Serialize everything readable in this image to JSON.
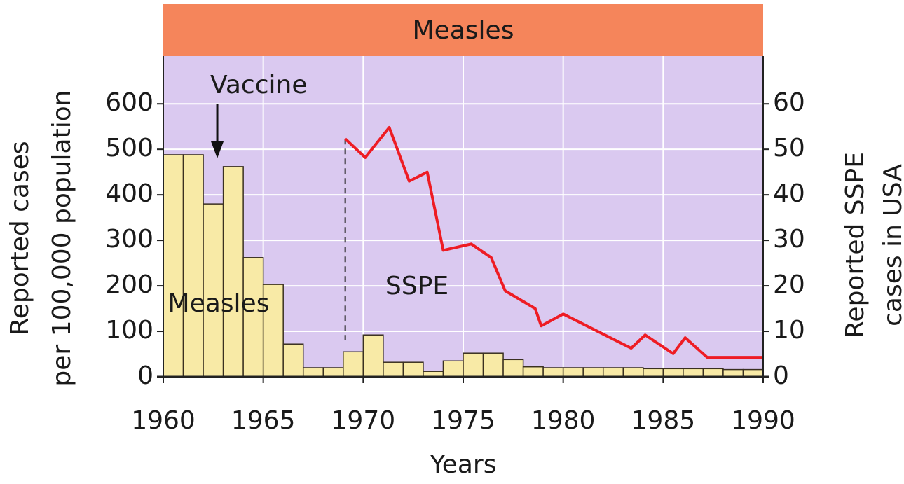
{
  "chart_data": {
    "type": "histogram",
    "band_label": "Measles",
    "xlabel": "Years",
    "ylabel": [
      "Reported cases",
      "per 100,000 population"
    ],
    "y2label": [
      "Reported SSPE",
      "cases in USA"
    ],
    "annotations": [
      {
        "text": "Vaccine",
        "x": 1962.7
      }
    ],
    "xlim": [
      1960,
      1990
    ],
    "ylim": [
      0,
      705
    ],
    "y2lim": [
      0,
      70.5
    ],
    "xticks": [
      1960,
      1965,
      1970,
      1975,
      1980,
      1985,
      1990
    ],
    "yticks": [
      0,
      100,
      200,
      300,
      400,
      500,
      600
    ],
    "y2ticks": [
      0,
      10,
      20,
      30,
      40,
      50,
      60
    ],
    "grid": true,
    "bins": [
      1960,
      1961,
      1962,
      1963,
      1964,
      1965,
      1966,
      1967,
      1968,
      1969,
      1970,
      1971,
      1972,
      1973,
      1974,
      1975,
      1976,
      1977,
      1978,
      1979,
      1980,
      1981,
      1982,
      1983,
      1984,
      1985,
      1986,
      1987,
      1988,
      1989,
      1990
    ],
    "series": [
      {
        "name": "Measles",
        "color": "#f8eaa6",
        "values": [
          488,
          488,
          380,
          462,
          262,
          203,
          72,
          20,
          20,
          55,
          92,
          32,
          32,
          12,
          35,
          52,
          52,
          38,
          22,
          20,
          20,
          20,
          20,
          20,
          18,
          18,
          18,
          18,
          16,
          16
        ]
      },
      {
        "name": "SSPE",
        "type": "line",
        "axis": "y2",
        "color": "#ee1c24",
        "x": [
          1969.1,
          1970.1,
          1971.3,
          1972.3,
          1973.2,
          1974.0,
          1975.4,
          1976.4,
          1977.1,
          1978.6,
          1978.9,
          1980.0,
          1983.4,
          1984.1,
          1985.5,
          1986.1,
          1987.2,
          1990
        ],
        "values": [
          52.3,
          48.2,
          54.8,
          43,
          45,
          27.8,
          29.2,
          26.2,
          18.9,
          15,
          11.2,
          13.8,
          6.3,
          9.2,
          5.1,
          8.6,
          4.3,
          4.3
        ]
      }
    ]
  }
}
